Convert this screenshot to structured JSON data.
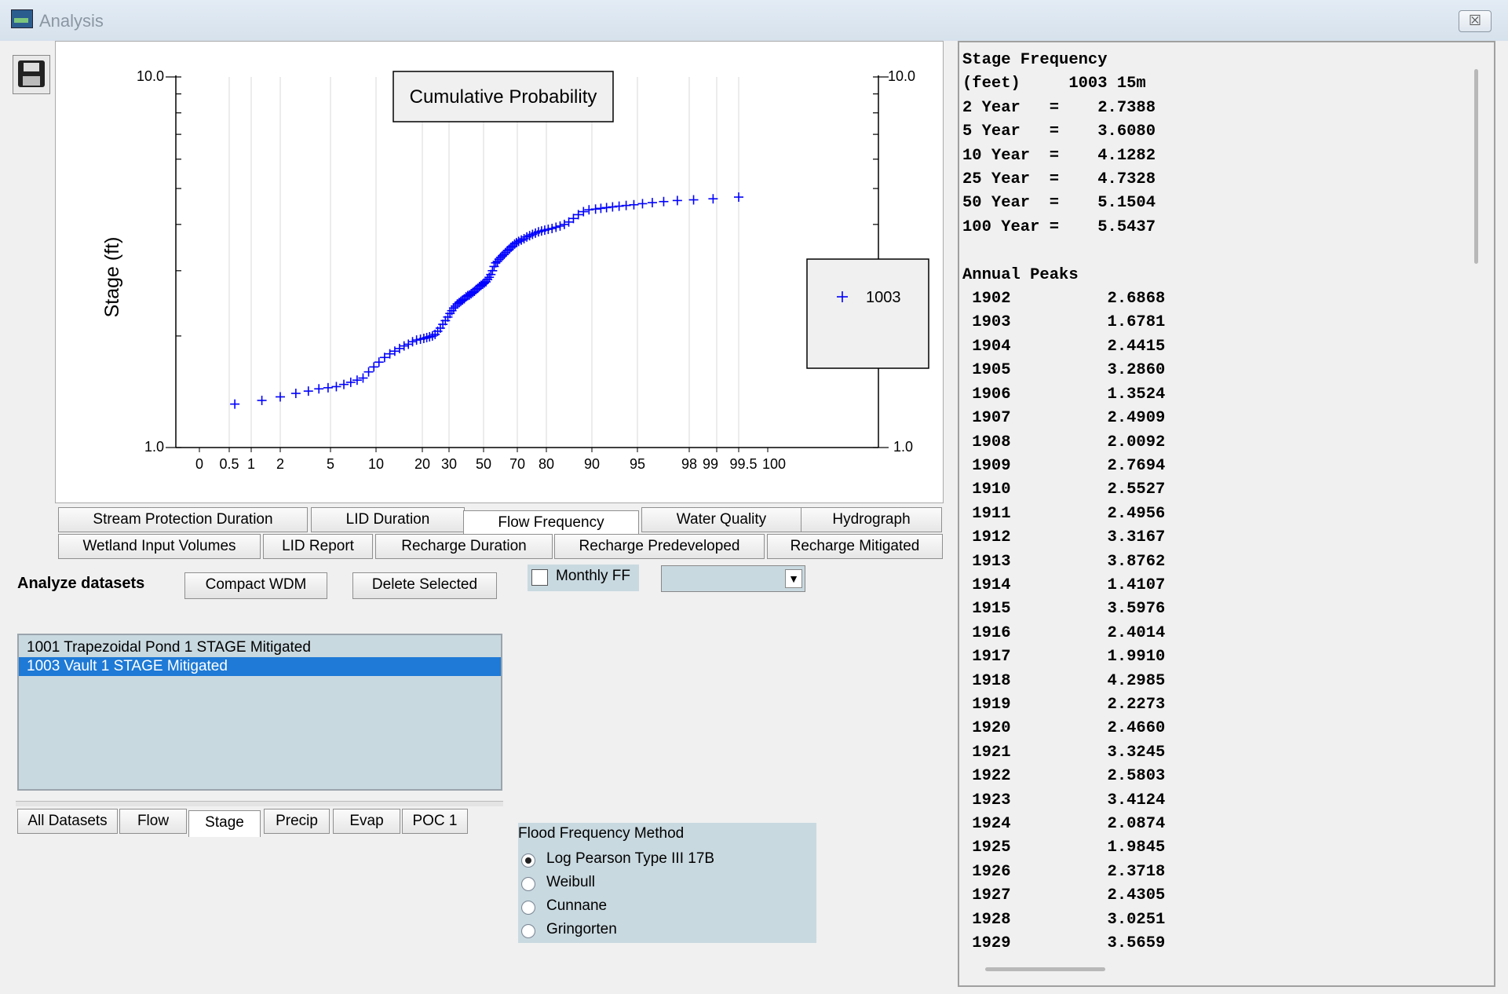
{
  "window": {
    "title": "Analysis",
    "close_glyph": "☒"
  },
  "toolbar": {
    "save_icon": "floppy-disk-icon"
  },
  "chart_data": {
    "type": "scatter",
    "title": "Cumulative Probability",
    "ylabel": "Stage (ft)",
    "yscale": "log",
    "ylim": [
      1.0,
      10.0
    ],
    "y_tick_labels": [
      "10.0",
      "1.0"
    ],
    "x_scale": "normal-probability",
    "x_ticks": [
      "0",
      "0.5",
      "1",
      "2",
      "5",
      "10",
      "20",
      "30",
      "50",
      "70",
      "80",
      "90",
      "95",
      "98",
      "99",
      "99.5",
      "100"
    ],
    "series": [
      {
        "name": "1003",
        "color": "#0000ff",
        "marker": "+",
        "points": [
          [
            0.6,
            1.31
          ],
          [
            1.3,
            1.34
          ],
          [
            2,
            1.37
          ],
          [
            2.7,
            1.4
          ],
          [
            3.4,
            1.42
          ],
          [
            4.1,
            1.44
          ],
          [
            4.8,
            1.45
          ],
          [
            5.5,
            1.46
          ],
          [
            6.2,
            1.48
          ],
          [
            6.9,
            1.5
          ],
          [
            7.6,
            1.52
          ],
          [
            8.3,
            1.54
          ],
          [
            9.0,
            1.6
          ],
          [
            9.7,
            1.65
          ],
          [
            10.5,
            1.7
          ],
          [
            11.5,
            1.75
          ],
          [
            12.5,
            1.79
          ],
          [
            13.5,
            1.82
          ],
          [
            14.5,
            1.85
          ],
          [
            15.5,
            1.88
          ],
          [
            16.5,
            1.9
          ],
          [
            17.5,
            1.93
          ],
          [
            18.5,
            1.95
          ],
          [
            19.5,
            1.96
          ],
          [
            20.5,
            1.97
          ],
          [
            21.5,
            1.98
          ],
          [
            22.5,
            1.99
          ],
          [
            23.5,
            2.0
          ],
          [
            24.5,
            2.02
          ],
          [
            25.5,
            2.06
          ],
          [
            26.5,
            2.1
          ],
          [
            27.5,
            2.15
          ],
          [
            28.5,
            2.2
          ],
          [
            29.5,
            2.25
          ],
          [
            30.5,
            2.3
          ],
          [
            31.5,
            2.34
          ],
          [
            32.5,
            2.38
          ],
          [
            33.5,
            2.41
          ],
          [
            34.5,
            2.44
          ],
          [
            35.5,
            2.46
          ],
          [
            36.5,
            2.48
          ],
          [
            37.5,
            2.5
          ],
          [
            38.5,
            2.52
          ],
          [
            39.5,
            2.55
          ],
          [
            40.5,
            2.57
          ],
          [
            41.5,
            2.58
          ],
          [
            42.5,
            2.6
          ],
          [
            43.5,
            2.62
          ],
          [
            44.5,
            2.64
          ],
          [
            45.5,
            2.67
          ],
          [
            46.5,
            2.69
          ],
          [
            47.5,
            2.72
          ],
          [
            48.5,
            2.74
          ],
          [
            49.5,
            2.76
          ],
          [
            50.5,
            2.78
          ],
          [
            51.5,
            2.8
          ],
          [
            52.5,
            2.84
          ],
          [
            53.5,
            2.88
          ],
          [
            54.5,
            2.93
          ],
          [
            55.5,
            3.0
          ],
          [
            56.5,
            3.08
          ],
          [
            57.5,
            3.15
          ],
          [
            58.5,
            3.18
          ],
          [
            59.5,
            3.22
          ],
          [
            60.5,
            3.26
          ],
          [
            61.5,
            3.29
          ],
          [
            62.5,
            3.32
          ],
          [
            63.5,
            3.36
          ],
          [
            64.5,
            3.4
          ],
          [
            65.5,
            3.43
          ],
          [
            66.5,
            3.47
          ],
          [
            67.5,
            3.5
          ],
          [
            68.5,
            3.54
          ],
          [
            69.5,
            3.57
          ],
          [
            70.5,
            3.6
          ],
          [
            71.5,
            3.63
          ],
          [
            72.5,
            3.66
          ],
          [
            73.5,
            3.7
          ],
          [
            74.5,
            3.73
          ],
          [
            75.5,
            3.76
          ],
          [
            76.5,
            3.79
          ],
          [
            77.5,
            3.82
          ],
          [
            78.5,
            3.84
          ],
          [
            79.5,
            3.86
          ],
          [
            80.5,
            3.88
          ],
          [
            81.5,
            3.9
          ],
          [
            82.5,
            3.93
          ],
          [
            83.5,
            3.96
          ],
          [
            84.5,
            4.0
          ],
          [
            85.5,
            4.06
          ],
          [
            86.5,
            4.15
          ],
          [
            87.5,
            4.25
          ],
          [
            88.5,
            4.33
          ],
          [
            89.5,
            4.38
          ],
          [
            90.5,
            4.4
          ],
          [
            91.2,
            4.42
          ],
          [
            91.9,
            4.44
          ],
          [
            92.6,
            4.46
          ],
          [
            93.3,
            4.48
          ],
          [
            94.0,
            4.5
          ],
          [
            94.7,
            4.52
          ],
          [
            95.4,
            4.55
          ],
          [
            96.1,
            4.58
          ],
          [
            96.8,
            4.61
          ],
          [
            97.5,
            4.64
          ],
          [
            98.2,
            4.66
          ],
          [
            98.9,
            4.69
          ],
          [
            99.5,
            4.74
          ]
        ]
      }
    ],
    "legend": {
      "placement": "right",
      "label": "1003"
    }
  },
  "tabs_row1": [
    "Stream Protection Duration",
    "LID Duration",
    "Flow Frequency",
    "Water Quality",
    "Hydrograph"
  ],
  "tabs_row2": [
    "Wetland Input Volumes",
    "LID Report",
    "Recharge Duration",
    "Recharge Predeveloped",
    "Recharge Mitigated"
  ],
  "active_tab": "Flow Frequency",
  "analyze": {
    "label": "Analyze datasets",
    "compact_button": "Compact WDM",
    "delete_button": "Delete Selected",
    "monthly_ff_label": "Monthly FF",
    "monthly_ff_checked": false,
    "month_select_value": ""
  },
  "datasets": [
    {
      "label": "1001 Trapezoidal Pond  1 STAGE Mitigated",
      "selected": false
    },
    {
      "label": "1003 Vault  1 STAGE Mitigated",
      "selected": true
    }
  ],
  "dataset_tabs": [
    "All Datasets",
    "Flow",
    "Stage",
    "Precip",
    "Evap",
    "POC 1"
  ],
  "active_dataset_tab": "Stage",
  "flood_method": {
    "title": "Flood Frequency Method",
    "options": [
      "Log Pearson Type III 17B",
      "Weibull",
      "Cunnane",
      "Gringorten"
    ],
    "selected": "Log Pearson Type III 17B"
  },
  "report": {
    "header_title": "Stage Frequency",
    "header_units": "(feet)",
    "header_series": "1003 15m",
    "frequency": [
      {
        "label": "2 Year",
        "value": "2.7388"
      },
      {
        "label": "5 Year",
        "value": "3.6080"
      },
      {
        "label": "10 Year",
        "value": "4.1282"
      },
      {
        "label": "25 Year",
        "value": "4.7328"
      },
      {
        "label": "50 Year",
        "value": "5.1504"
      },
      {
        "label": "100 Year",
        "value": "5.5437"
      }
    ],
    "peaks_title": "Annual Peaks",
    "peaks": [
      [
        "1902",
        "2.6868"
      ],
      [
        "1903",
        "1.6781"
      ],
      [
        "1904",
        "2.4415"
      ],
      [
        "1905",
        "3.2860"
      ],
      [
        "1906",
        "1.3524"
      ],
      [
        "1907",
        "2.4909"
      ],
      [
        "1908",
        "2.0092"
      ],
      [
        "1909",
        "2.7694"
      ],
      [
        "1910",
        "2.5527"
      ],
      [
        "1911",
        "2.4956"
      ],
      [
        "1912",
        "3.3167"
      ],
      [
        "1913",
        "3.8762"
      ],
      [
        "1914",
        "1.4107"
      ],
      [
        "1915",
        "3.5976"
      ],
      [
        "1916",
        "2.4014"
      ],
      [
        "1917",
        "1.9910"
      ],
      [
        "1918",
        "4.2985"
      ],
      [
        "1919",
        "2.2273"
      ],
      [
        "1920",
        "2.4660"
      ],
      [
        "1921",
        "3.3245"
      ],
      [
        "1922",
        "2.5803"
      ],
      [
        "1923",
        "3.4124"
      ],
      [
        "1924",
        "2.0874"
      ],
      [
        "1925",
        "1.9845"
      ],
      [
        "1926",
        "2.3718"
      ],
      [
        "1927",
        "2.4305"
      ],
      [
        "1928",
        "3.0251"
      ],
      [
        "1929",
        "3.5659"
      ]
    ]
  }
}
